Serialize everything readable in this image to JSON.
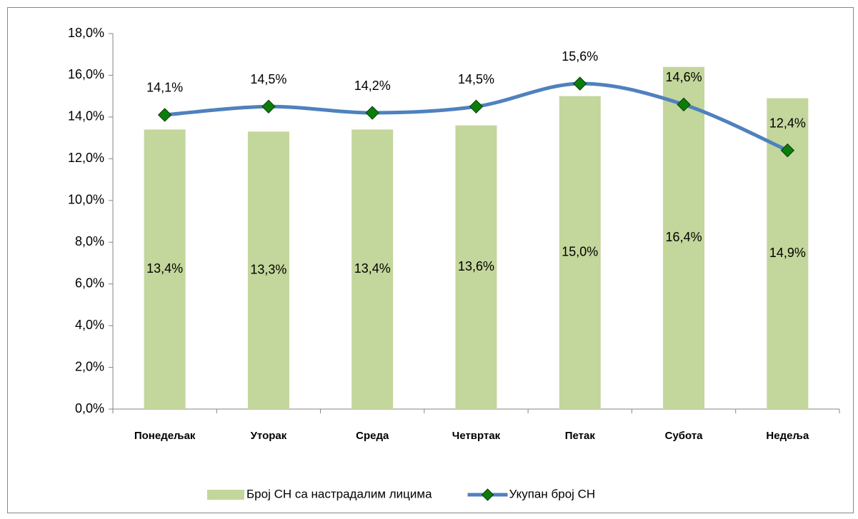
{
  "chart_data": {
    "type": "bar",
    "categories": [
      "Понедељак",
      "Уторак",
      "Среда",
      "Четвртак",
      "Петак",
      "Субота",
      "Недеља"
    ],
    "series": [
      {
        "name": "Број СН са настрадалим лицима",
        "type": "bar",
        "color": "#c3d69b",
        "values": [
          13.4,
          13.3,
          13.4,
          13.6,
          15.0,
          16.4,
          14.9
        ],
        "value_labels": [
          "13,4%",
          "13,3%",
          "13,4%",
          "13,6%",
          "15,0%",
          "16,4%",
          "14,9%"
        ]
      },
      {
        "name": "Укупан број СН",
        "type": "line",
        "color": "#4f81bd",
        "marker_color": "#0b7d0b",
        "values": [
          14.1,
          14.5,
          14.2,
          14.5,
          15.6,
          14.6,
          12.4
        ],
        "value_labels": [
          "14,1%",
          "14,5%",
          "14,2%",
          "14,5%",
          "15,6%",
          "14,6%",
          "12,4%"
        ]
      }
    ],
    "ylim": [
      0,
      18
    ],
    "yticks": [
      {
        "value": 0,
        "label": "0,0%"
      },
      {
        "value": 2,
        "label": "2,0%"
      },
      {
        "value": 4,
        "label": "4,0%"
      },
      {
        "value": 6,
        "label": "6,0%"
      },
      {
        "value": 8,
        "label": "8,0%"
      },
      {
        "value": 10,
        "label": "10,0%"
      },
      {
        "value": 12,
        "label": "12,0%"
      },
      {
        "value": 14,
        "label": "14,0%"
      },
      {
        "value": 16,
        "label": "16,0%"
      },
      {
        "value": 18,
        "label": "18,0%"
      }
    ],
    "grid": false,
    "legend": "bottom"
  }
}
